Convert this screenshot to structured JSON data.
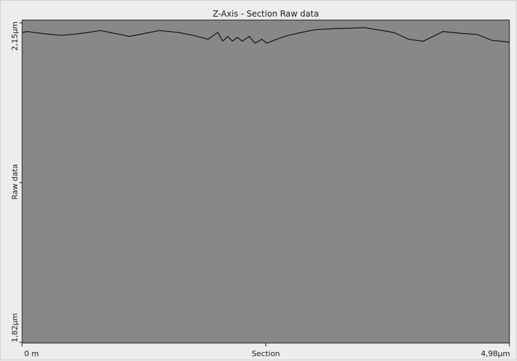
{
  "chart_data": {
    "type": "line",
    "title": "Z-Axis - Section   Raw data",
    "xlabel": "Section",
    "ylabel": "Raw data",
    "x_tick_labels": [
      "0 m",
      "4,98µm"
    ],
    "y_tick_labels": [
      "2,15µm",
      "1,82µm"
    ],
    "xlim": [
      0,
      4.98
    ],
    "ylim": [
      1.82,
      2.15
    ],
    "grid": false,
    "series": [
      {
        "x": [
          0,
          0.05,
          0.2,
          0.4,
          0.6,
          0.8,
          0.9,
          1.0,
          1.1,
          1.25,
          1.4,
          1.6,
          1.75,
          1.9,
          2.0,
          2.05,
          2.1,
          2.15,
          2.2,
          2.25,
          2.32,
          2.38,
          2.45,
          2.5,
          2.6,
          2.72,
          2.85,
          3.0,
          3.2,
          3.5,
          3.8,
          3.95,
          4.1,
          4.3,
          4.5,
          4.65,
          4.8,
          4.9,
          4.98
        ],
        "y": [
          2.14,
          2.141,
          2.139,
          2.137,
          2.139,
          2.142,
          2.14,
          2.138,
          2.136,
          2.139,
          2.142,
          2.14,
          2.137,
          2.133,
          2.14,
          2.131,
          2.136,
          2.131,
          2.135,
          2.131,
          2.136,
          2.129,
          2.133,
          2.129,
          2.133,
          2.137,
          2.14,
          2.143,
          2.144,
          2.145,
          2.14,
          2.133,
          2.131,
          2.141,
          2.139,
          2.138,
          2.132,
          2.131,
          2.13
        ]
      }
    ]
  }
}
